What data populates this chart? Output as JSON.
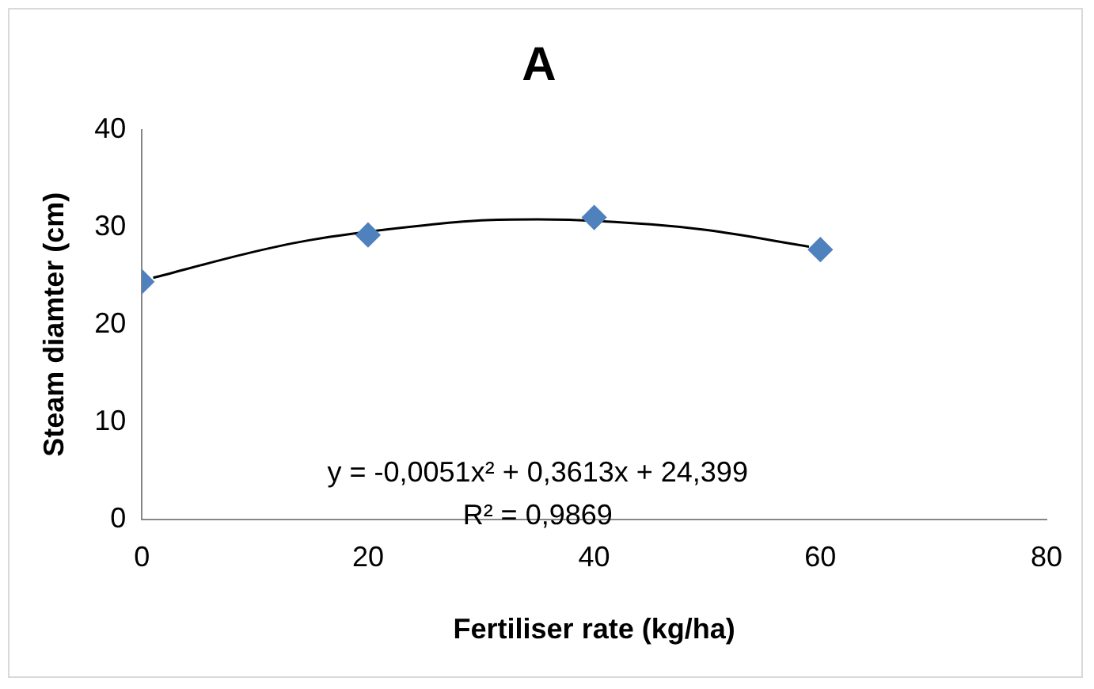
{
  "chart_data": {
    "type": "scatter",
    "title": "A",
    "xlabel": "Fertiliser rate (kg/ha)",
    "ylabel": "Steam diamter (cm)",
    "xlim": [
      0,
      80
    ],
    "xticks": [
      0,
      20,
      40,
      60,
      80
    ],
    "ylim": [
      0,
      40
    ],
    "yticks": [
      0,
      10,
      20,
      30,
      40
    ],
    "grid": false,
    "legend": false,
    "series": [
      {
        "color": "#4f81bd",
        "marker": "diamond",
        "x": [
          0,
          20,
          40,
          60
        ],
        "values": [
          24.4,
          29.2,
          31.0,
          27.7
        ]
      },
      {
        "type": "line",
        "color": "#000000",
        "marker": "none",
        "x": [
          1,
          10,
          15,
          25,
          30,
          35,
          45,
          50,
          59
        ],
        "values": [
          24.8,
          27.5,
          28.7,
          30.2,
          30.7,
          30.8,
          30.3,
          29.7,
          28.0
        ]
      }
    ],
    "annotations": [
      "y = -0,0051x² + 0,3613x + 24,399",
      "R² = 0,9869"
    ]
  }
}
